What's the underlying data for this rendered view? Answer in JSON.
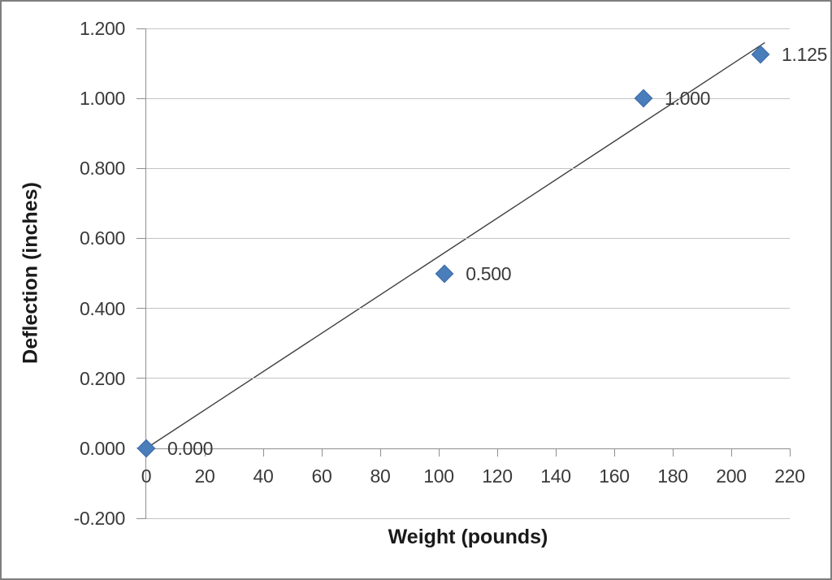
{
  "chart_data": {
    "type": "scatter",
    "title": "",
    "xlabel": "Weight (pounds)",
    "ylabel": "Deflection (inches)",
    "xlim": [
      0,
      220
    ],
    "ylim": [
      -0.2,
      1.2
    ],
    "x_ticks": [
      0,
      20,
      40,
      60,
      80,
      100,
      120,
      140,
      160,
      180,
      200,
      220
    ],
    "y_ticks": [
      1.2,
      1.0,
      0.8,
      0.6,
      0.4,
      0.2,
      0.0,
      -0.2
    ],
    "y_tick_decimals": 3,
    "grid": "horizontal",
    "legend": "none",
    "points": [
      {
        "x": 0,
        "y": 0.0,
        "label": "0.000"
      },
      {
        "x": 102,
        "y": 0.5,
        "label": "0.500"
      },
      {
        "x": 170,
        "y": 1.0,
        "label": "1.000"
      },
      {
        "x": 210,
        "y": 1.125,
        "label": "1.125"
      }
    ],
    "trendline": {
      "type": "linear",
      "slope": 0.005482,
      "intercept": 0,
      "x_start": 0,
      "x_end": 211.5
    },
    "colors": {
      "marker_fill": "#4a7ebb",
      "marker_stroke": "#3a6aa8",
      "trendline": "#3f3f3f",
      "gridline": "#c4c4c4",
      "axis": "#8f8f8f",
      "tick_text": "#3a3a3a",
      "title_text": "#1a1a1a",
      "frame_border": "#7f7f7f",
      "background": "#ffffff"
    }
  }
}
